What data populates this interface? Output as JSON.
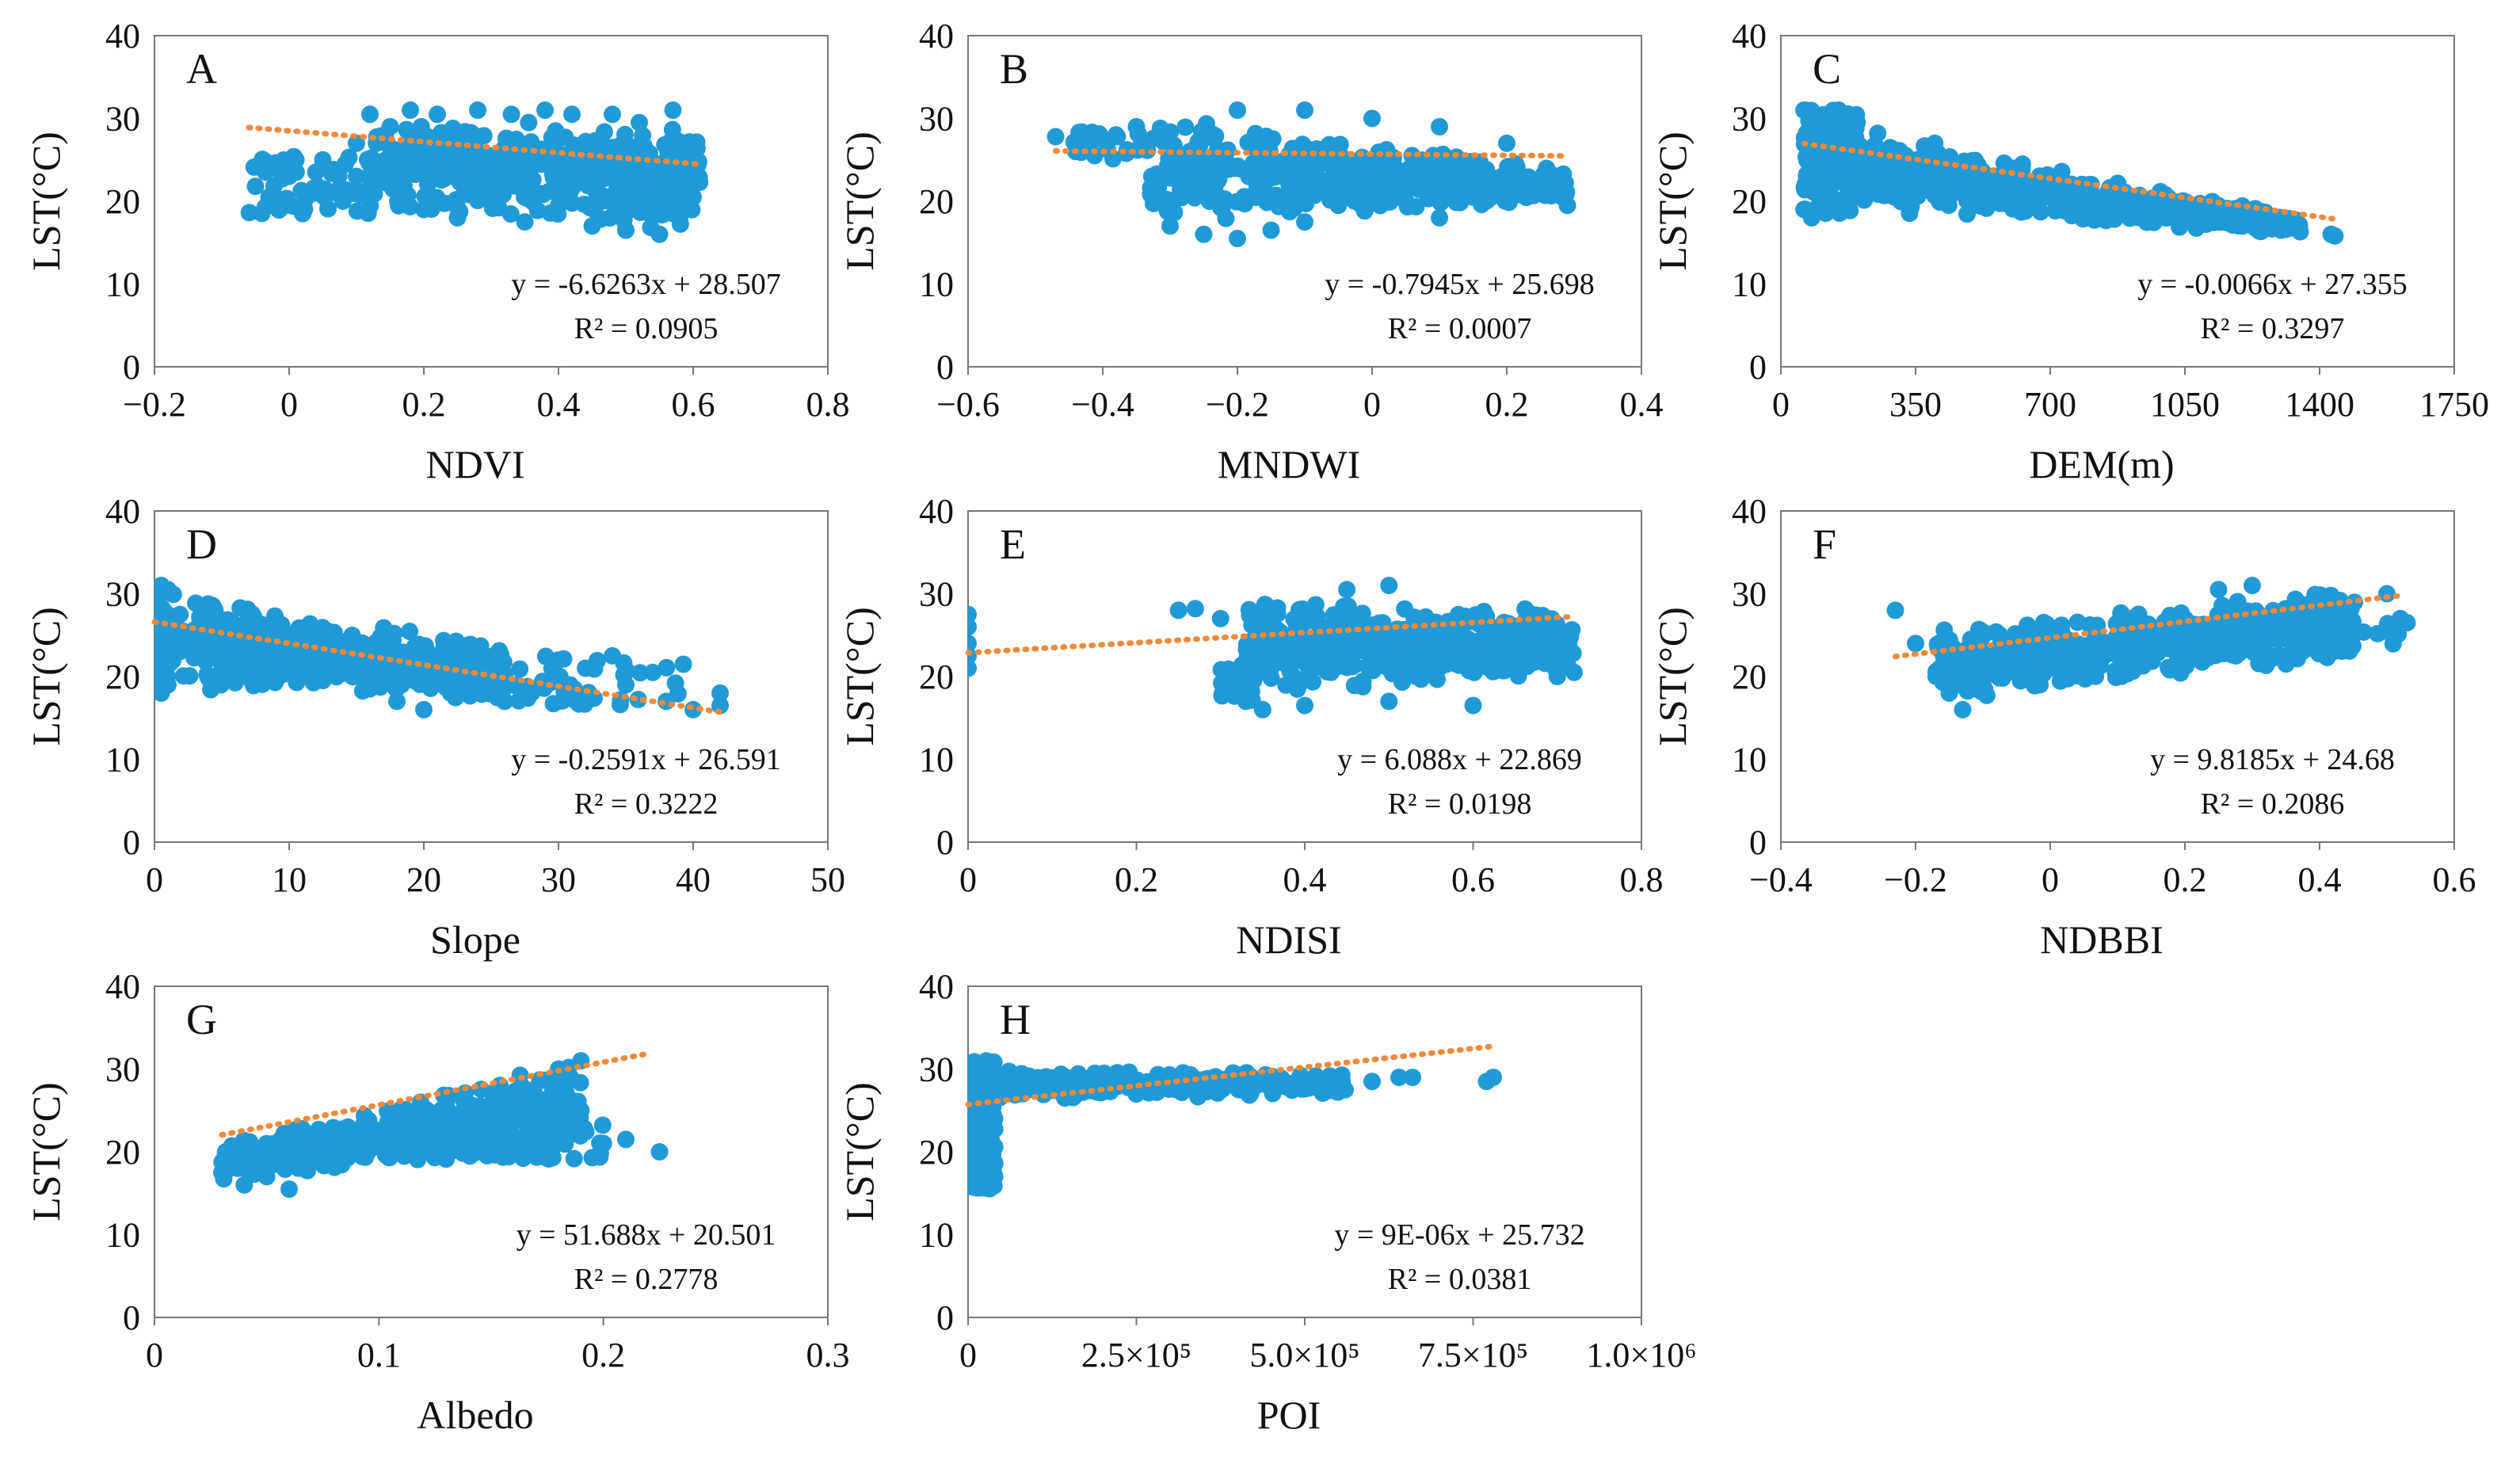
{
  "chart_data": [
    {
      "type": "scatter",
      "label": "A",
      "xlabel": "NDVI",
      "ylabel": "LST(°C)",
      "xlim": [
        -0.2,
        0.8
      ],
      "ylim": [
        0,
        40
      ],
      "xticks": [
        -0.2,
        0,
        0.2,
        0.4,
        0.6,
        0.8
      ],
      "xtick_labels": [
        "−0.2",
        "0",
        "0.2",
        "0.4",
        "0.6",
        "0.8"
      ],
      "yticks": [
        0,
        10,
        20,
        30,
        40
      ],
      "ytick_labels": [
        "0",
        "10",
        "20",
        "30",
        "40"
      ],
      "trend": {
        "slope": -6.6263,
        "intercept": 28.507,
        "x_range": [
          -0.06,
          0.61
        ]
      },
      "equation": "y = -6.6263x + 28.507",
      "r2": "R² = 0.0905",
      "points": [
        [
          -0.05,
          21.8
        ],
        [
          -0.03,
          20.5
        ],
        [
          0,
          23
        ],
        [
          0.02,
          18.5
        ],
        [
          0.05,
          21.5
        ],
        [
          0.08,
          20
        ],
        [
          0.1,
          23
        ],
        [
          0.12,
          30.5
        ],
        [
          0.15,
          29
        ],
        [
          0.18,
          31
        ],
        [
          0.2,
          19
        ],
        [
          0.22,
          30.5
        ],
        [
          0.25,
          18
        ],
        [
          0.28,
          31
        ],
        [
          0.3,
          20
        ],
        [
          0.33,
          30.5
        ],
        [
          0.35,
          17.5
        ],
        [
          0.38,
          31
        ],
        [
          0.4,
          19.5
        ],
        [
          0.42,
          30.5
        ],
        [
          0.45,
          17
        ],
        [
          0.48,
          30.5
        ],
        [
          0.5,
          16.5
        ],
        [
          0.52,
          29.5
        ],
        [
          0.55,
          16
        ],
        [
          0.57,
          31
        ],
        [
          0.58,
          18
        ],
        [
          0.6,
          26
        ],
        [
          0.6,
          20.5
        ],
        [
          0.3,
          24
        ],
        [
          0.4,
          25
        ],
        [
          0.5,
          23
        ],
        [
          0.2,
          26
        ],
        [
          0.15,
          22
        ],
        [
          0.45,
          27
        ],
        [
          0.35,
          22
        ],
        [
          0.55,
          22
        ],
        [
          0.25,
          28
        ],
        [
          0.1,
          27
        ],
        [
          0.05,
          25
        ]
      ],
      "cloud": {
        "x": [
          0.12,
          0.61
        ],
        "y_low_start": 19,
        "y_low_end": 16,
        "y_high_start": 30.5,
        "y_high_end": 29,
        "density": 480
      },
      "cloud2": {
        "x": [
          -0.06,
          0.12
        ],
        "y_low": 18.5,
        "y_high": 26,
        "density": 60
      }
    },
    {
      "type": "scatter",
      "label": "B",
      "xlabel": "MNDWI",
      "ylabel": "LST(°C)",
      "xlim": [
        -0.6,
        0.4
      ],
      "ylim": [
        0,
        40
      ],
      "xticks": [
        -0.6,
        -0.4,
        -0.2,
        0,
        0.2,
        0.4
      ],
      "xtick_labels": [
        "−0.6",
        "−0.4",
        "−0.2",
        "0",
        "0.2",
        "0.4"
      ],
      "yticks": [
        0,
        10,
        20,
        30,
        40
      ],
      "ytick_labels": [
        "0",
        "10",
        "20",
        "30",
        "40"
      ],
      "trend": {
        "slope": -0.7945,
        "intercept": 25.698,
        "x_range": [
          -0.47,
          0.29
        ]
      },
      "equation": "y = -0.7945x + 25.698",
      "r2": "R² = 0.0007",
      "points": [
        [
          -0.47,
          27.8
        ],
        [
          -0.44,
          26
        ],
        [
          -0.4,
          27.5
        ],
        [
          -0.35,
          29
        ],
        [
          -0.3,
          17
        ],
        [
          -0.25,
          16
        ],
        [
          -0.2,
          15.5
        ],
        [
          -0.15,
          16.5
        ],
        [
          -0.1,
          17.5
        ],
        [
          -0.05,
          19.5
        ],
        [
          0,
          21
        ],
        [
          0.05,
          20
        ],
        [
          0.1,
          18
        ],
        [
          0.15,
          20.5
        ],
        [
          0.2,
          21.5
        ],
        [
          0.25,
          22
        ],
        [
          0.29,
          19.5
        ],
        [
          0.28,
          23
        ],
        [
          -0.1,
          31
        ],
        [
          -0.2,
          31
        ],
        [
          0,
          30
        ],
        [
          0.1,
          29
        ],
        [
          0.2,
          27
        ]
      ],
      "cloud": {
        "x": [
          -0.33,
          0.29
        ],
        "y_low_start": 17,
        "y_low_end": 20,
        "y_high_start": 30.5,
        "y_high_end": 24,
        "density": 520
      },
      "cloud2": {
        "x": [
          -0.45,
          -0.33
        ],
        "y_low": 25,
        "y_high": 28.5,
        "density": 25
      }
    },
    {
      "type": "scatter",
      "label": "C",
      "xlabel": "DEM(m)",
      "ylabel": "LST(°C)",
      "xlim": [
        0,
        1750
      ],
      "ylim": [
        0,
        40
      ],
      "xticks": [
        0,
        350,
        700,
        1050,
        1400,
        1750
      ],
      "xtick_labels": [
        "0",
        "350",
        "700",
        "1050",
        "1400",
        "1750"
      ],
      "yticks": [
        0,
        10,
        20,
        30,
        40
      ],
      "ytick_labels": [
        "0",
        "10",
        "20",
        "30",
        "40"
      ],
      "trend": {
        "slope": -0.0066,
        "intercept": 27.355,
        "x_range": [
          60,
          1450
        ]
      },
      "equation": "y = -0.0066x + 27.355",
      "r2": "R² = 0.3297",
      "points": [
        [
          60,
          31
        ],
        [
          100,
          30
        ],
        [
          150,
          31
        ],
        [
          60,
          19
        ],
        [
          80,
          18
        ],
        [
          120,
          19.5
        ],
        [
          1430,
          16
        ],
        [
          1440,
          15.8
        ],
        [
          1300,
          16.5
        ],
        [
          1200,
          17
        ],
        [
          1000,
          18
        ],
        [
          900,
          20
        ],
        [
          800,
          22
        ],
        [
          600,
          24
        ],
        [
          400,
          27
        ]
      ],
      "cloud": {
        "x": [
          60,
          1350
        ],
        "y_low_start": 19,
        "y_low_end": 16,
        "y_high_start": 31,
        "y_high_end": 18,
        "density": 520
      },
      "cloud2": {
        "x": [
          60,
          200
        ],
        "y_low": 18.5,
        "y_high": 31,
        "density": 120
      }
    },
    {
      "type": "scatter",
      "label": "D",
      "xlabel": "Slope",
      "ylabel": "LST(°C)",
      "xlim": [
        0,
        50
      ],
      "ylim": [
        0,
        40
      ],
      "xticks": [
        0,
        10,
        20,
        30,
        40,
        50
      ],
      "xtick_labels": [
        "0",
        "10",
        "20",
        "30",
        "40",
        "50"
      ],
      "yticks": [
        0,
        10,
        20,
        30,
        40
      ],
      "ytick_labels": [
        "0",
        "10",
        "20",
        "30",
        "40"
      ],
      "trend": {
        "slope": -0.2591,
        "intercept": 26.591,
        "x_range": [
          0,
          42
        ]
      },
      "equation": "y = -0.2591x + 26.591",
      "r2": "R² = 0.3222",
      "points": [
        [
          0.5,
          31
        ],
        [
          1,
          30.5
        ],
        [
          0.5,
          18
        ],
        [
          1,
          19
        ],
        [
          30,
          22
        ],
        [
          32,
          21
        ],
        [
          34,
          22.5
        ],
        [
          35,
          19
        ],
        [
          37,
          20.5
        ],
        [
          38,
          17
        ],
        [
          40,
          16
        ],
        [
          42,
          18
        ],
        [
          42,
          16.5
        ],
        [
          28,
          18
        ],
        [
          26,
          17
        ],
        [
          24,
          19
        ],
        [
          20,
          16
        ],
        [
          18,
          17
        ]
      ],
      "cloud": {
        "x": [
          0,
          26
        ],
        "y_low_start": 18.5,
        "y_low_end": 16.5,
        "y_high_start": 31,
        "y_high_end": 24,
        "density": 520
      },
      "cloud2": {
        "x": [
          26,
          40
        ],
        "y_low": 16.5,
        "y_high": 22.5,
        "density": 40
      }
    },
    {
      "type": "scatter",
      "label": "E",
      "xlabel": "NDISI",
      "ylabel": "LST(°C)",
      "xlim": [
        0,
        0.8
      ],
      "ylim": [
        0,
        40
      ],
      "xticks": [
        0,
        0.2,
        0.4,
        0.6,
        0.8
      ],
      "xtick_labels": [
        "0",
        "0.2",
        "0.4",
        "0.6",
        "0.8"
      ],
      "yticks": [
        0,
        10,
        20,
        30,
        40
      ],
      "ytick_labels": [
        "0",
        "10",
        "20",
        "30",
        "40"
      ],
      "trend": {
        "slope": 6.088,
        "intercept": 22.869,
        "x_range": [
          0,
          0.72
        ]
      },
      "equation": "y = 6.088x + 22.869",
      "r2": "R² = 0.0198",
      "points": [
        [
          0,
          27.5
        ],
        [
          0,
          26
        ],
        [
          0,
          24
        ],
        [
          0,
          22.5
        ],
        [
          0,
          21
        ],
        [
          0.25,
          28
        ],
        [
          0.27,
          28.2
        ],
        [
          0.3,
          27
        ],
        [
          0.32,
          18
        ],
        [
          0.33,
          17
        ],
        [
          0.35,
          16
        ],
        [
          0.4,
          16.5
        ],
        [
          0.5,
          17
        ],
        [
          0.6,
          16.5
        ],
        [
          0.7,
          20
        ],
        [
          0.72,
          20.5
        ],
        [
          0.5,
          31
        ],
        [
          0.45,
          30.5
        ]
      ],
      "cloud": {
        "x": [
          0.33,
          0.72
        ],
        "y_low_start": 17.5,
        "y_low_end": 20,
        "y_high_start": 29.5,
        "y_high_end": 28,
        "density": 520
      },
      "cloud2": {
        "x": [
          0.3,
          0.34
        ],
        "y_low": 17,
        "y_high": 22,
        "density": 20
      }
    },
    {
      "type": "scatter",
      "label": "F",
      "xlabel": "NDBBI",
      "ylabel": "LST(°C)",
      "xlim": [
        -0.4,
        0.6
      ],
      "ylim": [
        0,
        40
      ],
      "xticks": [
        -0.4,
        -0.2,
        0,
        0.2,
        0.4,
        0.6
      ],
      "xtick_labels": [
        "−0.4",
        "−0.2",
        "0",
        "0.2",
        "0.4",
        "0.6"
      ],
      "yticks": [
        0,
        10,
        20,
        30,
        40
      ],
      "ytick_labels": [
        "0",
        "10",
        "20",
        "30",
        "40"
      ],
      "trend": {
        "slope": 9.8185,
        "intercept": 24.68,
        "x_range": [
          -0.23,
          0.52
        ]
      },
      "equation": "y = 9.8185x + 24.68",
      "r2": "R² = 0.2086",
      "points": [
        [
          -0.23,
          28
        ],
        [
          -0.2,
          24
        ],
        [
          -0.15,
          18
        ],
        [
          -0.13,
          16
        ],
        [
          0.5,
          30
        ],
        [
          0.52,
          27
        ],
        [
          0.53,
          26.5
        ],
        [
          0.45,
          25
        ],
        [
          0.42,
          23
        ],
        [
          0.35,
          22
        ],
        [
          0.3,
          31
        ],
        [
          0.25,
          30.5
        ]
      ],
      "cloud": {
        "x": [
          -0.17,
          0.45
        ],
        "y_low_start": 17,
        "y_low_end": 22,
        "y_high_start": 26,
        "y_high_end": 30.5,
        "density": 560
      },
      "cloud2": {
        "x": [
          0.38,
          0.52
        ],
        "y_low": 23,
        "y_high": 30,
        "density": 30
      }
    },
    {
      "type": "scatter",
      "label": "G",
      "xlabel": "Albedo",
      "ylabel": "LST(°C)",
      "xlim": [
        0,
        0.3
      ],
      "ylim": [
        0,
        40
      ],
      "xticks": [
        0,
        0.1,
        0.2,
        0.3
      ],
      "xtick_labels": [
        "0",
        "0.1",
        "0.2",
        "0.3"
      ],
      "yticks": [
        0,
        10,
        20,
        30,
        40
      ],
      "ytick_labels": [
        "0",
        "10",
        "20",
        "30",
        "40"
      ],
      "trend": {
        "slope": 51.688,
        "intercept": 20.501,
        "x_range": [
          0.03,
          0.22
        ]
      },
      "equation": "y = 51.688x + 20.501",
      "r2": "R² = 0.2778",
      "points": [
        [
          0.03,
          17.5
        ],
        [
          0.04,
          16
        ],
        [
          0.05,
          17
        ],
        [
          0.06,
          15.5
        ],
        [
          0.19,
          31
        ],
        [
          0.18,
          30
        ],
        [
          0.19,
          25
        ],
        [
          0.2,
          21
        ],
        [
          0.21,
          21.5
        ],
        [
          0.225,
          20
        ],
        [
          0.17,
          24
        ],
        [
          0.16,
          20.5
        ]
      ],
      "cloud": {
        "x": [
          0.03,
          0.19
        ],
        "y_low_start": 16.5,
        "y_low_end": 20,
        "y_high_start": 21,
        "y_high_end": 31,
        "density": 520
      },
      "cloud2": {
        "x": [
          0.12,
          0.2
        ],
        "y_low": 19,
        "y_high": 25,
        "density": 90
      }
    },
    {
      "type": "scatter",
      "label": "H",
      "xlabel": "POI",
      "ylabel": "LST(°C)",
      "xlim": [
        0,
        1000000
      ],
      "ylim": [
        0,
        40
      ],
      "xticks": [
        0,
        250000,
        500000,
        750000,
        1000000
      ],
      "xtick_labels": [
        "0",
        "2.5×10⁵",
        "5.0×10⁵",
        "7.5×10⁵",
        "1.0×10⁶"
      ],
      "yticks": [
        0,
        10,
        20,
        30,
        40
      ],
      "ytick_labels": [
        "0",
        "10",
        "20",
        "30",
        "40"
      ],
      "trend": {
        "slope": 9e-06,
        "intercept": 25.732,
        "x_range": [
          0,
          780000
        ]
      },
      "equation": "y = 9E-06x + 25.732",
      "r2": "R² = 0.0381",
      "points": [
        [
          560000,
          27.5
        ],
        [
          600000,
          28.5
        ],
        [
          640000,
          29
        ],
        [
          660000,
          29
        ],
        [
          770000,
          28.5
        ],
        [
          780000,
          29
        ],
        [
          500000,
          28
        ],
        [
          450000,
          28.5
        ],
        [
          400000,
          28
        ]
      ],
      "cloud": {
        "x": [
          40000,
          560000
        ],
        "y_low_start": 26,
        "y_low_end": 27,
        "y_high_start": 30,
        "y_high_end": 29.5,
        "density": 300
      },
      "cloud2": {
        "x": [
          0,
          40000
        ],
        "y_low": 15.5,
        "y_high": 31,
        "density": 300
      }
    }
  ]
}
